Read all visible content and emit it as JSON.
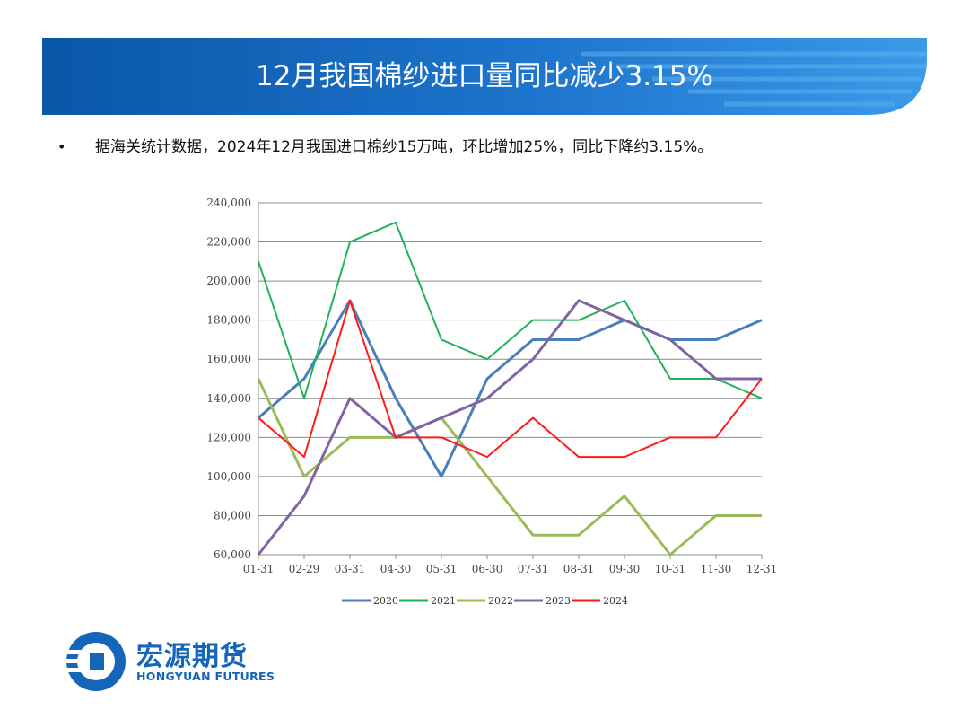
{
  "header": {
    "title": "12月我国棉纱进口量同比减少3.15%"
  },
  "bullet": {
    "marker": "•",
    "text": "据海关统计数据，2024年12月我国进口棉纱15万吨，环比增加25%，同比下降约3.15%。"
  },
  "logo": {
    "name_cn": "宏源期货",
    "name_en": "HONGYUAN FUTURES"
  },
  "colors": {
    "banner_dark": "#0a57a8",
    "banner_light": "#2f8ee0",
    "brand": "#1565b8"
  },
  "chart_data": {
    "type": "line",
    "title": "",
    "xlabel": "",
    "ylabel": "",
    "categories": [
      "01-31",
      "02-29",
      "03-31",
      "04-30",
      "05-31",
      "06-30",
      "07-31",
      "08-31",
      "09-30",
      "10-31",
      "11-30",
      "12-31"
    ],
    "ylim": [
      60000,
      240000
    ],
    "yticks": [
      "60,000",
      "80,000",
      "100,000",
      "120,000",
      "140,000",
      "160,000",
      "180,000",
      "200,000",
      "220,000",
      "240,000"
    ],
    "grid": true,
    "legend_position": "bottom",
    "series": [
      {
        "name": "2020",
        "color": "#4a7ebb",
        "values": [
          130000,
          150000,
          190000,
          140000,
          100000,
          150000,
          170000,
          170000,
          180000,
          170000,
          170000,
          180000
        ]
      },
      {
        "name": "2021",
        "color": "#1fb25a",
        "values": [
          210000,
          140000,
          220000,
          230000,
          170000,
          160000,
          180000,
          180000,
          190000,
          150000,
          150000,
          140000
        ]
      },
      {
        "name": "2022",
        "color": "#9bbb59",
        "values": [
          150000,
          100000,
          120000,
          120000,
          130000,
          100000,
          70000,
          70000,
          90000,
          60000,
          80000,
          80000
        ]
      },
      {
        "name": "2023",
        "color": "#8064a2",
        "values": [
          60000,
          90000,
          140000,
          120000,
          130000,
          140000,
          160000,
          190000,
          180000,
          170000,
          150000,
          150000
        ]
      },
      {
        "name": "2024",
        "color": "#ff1a1a",
        "values": [
          130000,
          110000,
          190000,
          120000,
          120000,
          110000,
          130000,
          110000,
          110000,
          120000,
          120000,
          150000
        ]
      }
    ]
  }
}
